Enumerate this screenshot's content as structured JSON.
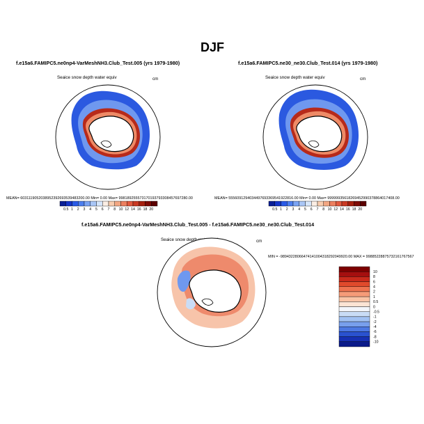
{
  "page_title": "DJF",
  "chart_data": [
    {
      "type": "heatmap",
      "title": "f.e15a6.FAMIPC5.ne0np4-VarMeshNH3.Club_Test.005 (yrs 1979-1980)",
      "variable": "Seaice snow depth water equiv",
      "units": "cm",
      "stats": "MEAN= 6031119052038952392693539483200.00  Min=   0.00  Max= 99818925557317019379330845769728​0.00",
      "colorbar": {
        "levels": [
          "0.5",
          "1",
          "2",
          "3",
          "4",
          "5",
          "6",
          "7",
          "8",
          "10",
          "12",
          "14",
          "16",
          "18",
          "20"
        ],
        "colors": [
          "#0a1f96",
          "#1535c8",
          "#2a5ae6",
          "#4d7fef",
          "#7aa3f3",
          "#a9c6f6",
          "#d6e6fb",
          "#fbeee4",
          "#f8cdb0",
          "#f2a783",
          "#ec8060",
          "#e15a40",
          "#c93a24",
          "#a5200f",
          "#7d0b06",
          "#5c0000"
        ]
      }
    },
    {
      "type": "heatmap",
      "title": "f.e15a6.FAMIPC5.ne30_ne30.Club_Test.014 (yrs 1979-1980)",
      "variable": "Seaice snow depth water equiv",
      "units": "cm",
      "stats": "MEAN= 555609129403449769336954192281​6.00  Min=   0.00  Max= 99999935618269452990378864017408.00",
      "colorbar": {
        "levels": [
          "0.5",
          "1",
          "2",
          "3",
          "4",
          "5",
          "6",
          "7",
          "8",
          "10",
          "12",
          "14",
          "16",
          "18",
          "20"
        ],
        "colors": [
          "#0a1f96",
          "#1535c8",
          "#2a5ae6",
          "#4d7fef",
          "#7aa3f3",
          "#a9c6f6",
          "#d6e6fb",
          "#fbeee4",
          "#f8cdb0",
          "#f2a783",
          "#ec8060",
          "#e15a40",
          "#c93a24",
          "#a5200f",
          "#7d0b06",
          "#5c0000"
        ]
      }
    },
    {
      "type": "heatmap",
      "title": "f.e15a6.FAMIPC5.ne0np4-VarMeshNH3.Club_Test.005 - f.e15a6.FAMIPC5.ne30_ne30.Club_Test.014",
      "variable": "Seaice snow depth water equiv",
      "units": "cm",
      "stats": "MIN = -98943228066474141004318292049920.00  MAX = 99885228875732161767567",
      "colorbar": {
        "levels": [
          "10",
          "8",
          "6",
          "4",
          "2",
          "1",
          "0.5",
          "0",
          "-0.5",
          "-1",
          "-2",
          "-4",
          "-6",
          "-8",
          "-10"
        ],
        "colors": [
          "#7d0000",
          "#a50f0f",
          "#c92a1c",
          "#e04a2c",
          "#ef7350",
          "#f59b78",
          "#f9c3a5",
          "#fce4d4",
          "#f3f6fb",
          "#c9dcf6",
          "#a1c1f2",
          "#789fec",
          "#4d78e2",
          "#2a52cf",
          "#1630b3",
          "#0a1a8a"
        ]
      }
    }
  ]
}
